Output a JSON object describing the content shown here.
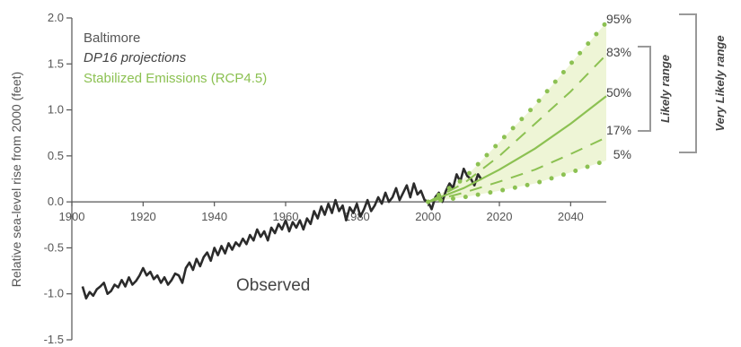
{
  "chart_data": {
    "type": "line",
    "ylabel": "Relative sea-level rise from 2000 (feet)",
    "location": "Baltimore",
    "subtitle": "DP16 projections",
    "scenario": "Stabilized Emissions (RCP4.5)",
    "xlim": [
      1900,
      2050
    ],
    "ylim": [
      -1.5,
      2.0
    ],
    "x_ticks": [
      "1900",
      "1920",
      "1940",
      "1960",
      "1980",
      "2000",
      "2020",
      "2040"
    ],
    "y_ticks": [
      "2.0",
      "1.5",
      "1.0",
      "0.5",
      "0.0",
      "-0.5",
      "-1.0",
      "-1.5"
    ],
    "y_tick_values": [
      2.0,
      1.5,
      1.0,
      0.5,
      0.0,
      -0.5,
      -1.0,
      -1.5
    ],
    "observed_label": "Observed",
    "observed": {
      "x": [
        1903,
        1904,
        1905,
        1906,
        1907,
        1908,
        1909,
        1910,
        1911,
        1912,
        1913,
        1914,
        1915,
        1916,
        1917,
        1918,
        1919,
        1920,
        1921,
        1922,
        1923,
        1924,
        1925,
        1926,
        1927,
        1928,
        1929,
        1930,
        1931,
        1932,
        1933,
        1934,
        1935,
        1936,
        1937,
        1938,
        1939,
        1940,
        1941,
        1942,
        1943,
        1944,
        1945,
        1946,
        1947,
        1948,
        1949,
        1950,
        1951,
        1952,
        1953,
        1954,
        1955,
        1956,
        1957,
        1958,
        1959,
        1960,
        1961,
        1962,
        1963,
        1964,
        1965,
        1966,
        1967,
        1968,
        1969,
        1970,
        1971,
        1972,
        1973,
        1974,
        1975,
        1976,
        1977,
        1978,
        1979,
        1980,
        1981,
        1982,
        1983,
        1984,
        1985,
        1986,
        1987,
        1988,
        1989,
        1990,
        1991,
        1992,
        1993,
        1994,
        1995,
        1996,
        1997,
        1998,
        1999,
        2000,
        2001,
        2002,
        2003,
        2004,
        2005,
        2006,
        2007,
        2008,
        2009,
        2010,
        2011,
        2012,
        2013,
        2014,
        2015
      ],
      "y": [
        -0.92,
        -1.05,
        -0.98,
        -1.02,
        -0.95,
        -0.92,
        -0.88,
        -1.0,
        -0.97,
        -0.9,
        -0.93,
        -0.85,
        -0.92,
        -0.82,
        -0.9,
        -0.86,
        -0.8,
        -0.72,
        -0.8,
        -0.76,
        -0.84,
        -0.8,
        -0.88,
        -0.82,
        -0.9,
        -0.85,
        -0.78,
        -0.8,
        -0.88,
        -0.72,
        -0.66,
        -0.74,
        -0.62,
        -0.7,
        -0.6,
        -0.55,
        -0.64,
        -0.5,
        -0.58,
        -0.48,
        -0.56,
        -0.45,
        -0.52,
        -0.44,
        -0.48,
        -0.4,
        -0.46,
        -0.36,
        -0.42,
        -0.3,
        -0.38,
        -0.32,
        -0.42,
        -0.28,
        -0.34,
        -0.24,
        -0.3,
        -0.2,
        -0.32,
        -0.22,
        -0.28,
        -0.2,
        -0.3,
        -0.18,
        -0.24,
        -0.1,
        -0.18,
        -0.05,
        -0.14,
        -0.02,
        -0.12,
        0.02,
        -0.1,
        -0.04,
        -0.2,
        -0.06,
        -0.12,
        -0.02,
        -0.16,
        -0.08,
        0.02,
        -0.1,
        -0.04,
        0.05,
        -0.02,
        0.1,
        0.0,
        0.05,
        0.15,
        0.02,
        0.1,
        0.18,
        0.05,
        0.2,
        0.08,
        0.12,
        0.02,
        0.0,
        -0.08,
        0.05,
        0.1,
        0.0,
        0.12,
        0.2,
        0.15,
        0.3,
        0.22,
        0.36,
        0.28,
        0.25,
        0.18,
        0.3,
        0.24
      ]
    },
    "projections": {
      "x": [
        2000,
        2010,
        2020,
        2030,
        2040,
        2050
      ],
      "series": [
        {
          "name": "95%",
          "style": "dotted",
          "values": [
            0.0,
            0.25,
            0.65,
            1.05,
            1.5,
            1.95
          ]
        },
        {
          "name": "83%",
          "style": "dashed",
          "values": [
            0.0,
            0.2,
            0.5,
            0.85,
            1.2,
            1.6
          ]
        },
        {
          "name": "50%",
          "style": "solid",
          "values": [
            0.0,
            0.15,
            0.35,
            0.58,
            0.85,
            1.15
          ]
        },
        {
          "name": "17%",
          "style": "dashed",
          "values": [
            0.0,
            0.1,
            0.22,
            0.35,
            0.52,
            0.7
          ]
        },
        {
          "name": "5%",
          "style": "dotted",
          "values": [
            0.0,
            0.05,
            0.12,
            0.2,
            0.32,
            0.45
          ]
        }
      ]
    },
    "likely_range_label": "Likely range",
    "very_likely_range_label": "Very Likely range",
    "colors": {
      "observed": "#2b2b2b",
      "projection": "#8cc152",
      "text": "#555555"
    }
  }
}
